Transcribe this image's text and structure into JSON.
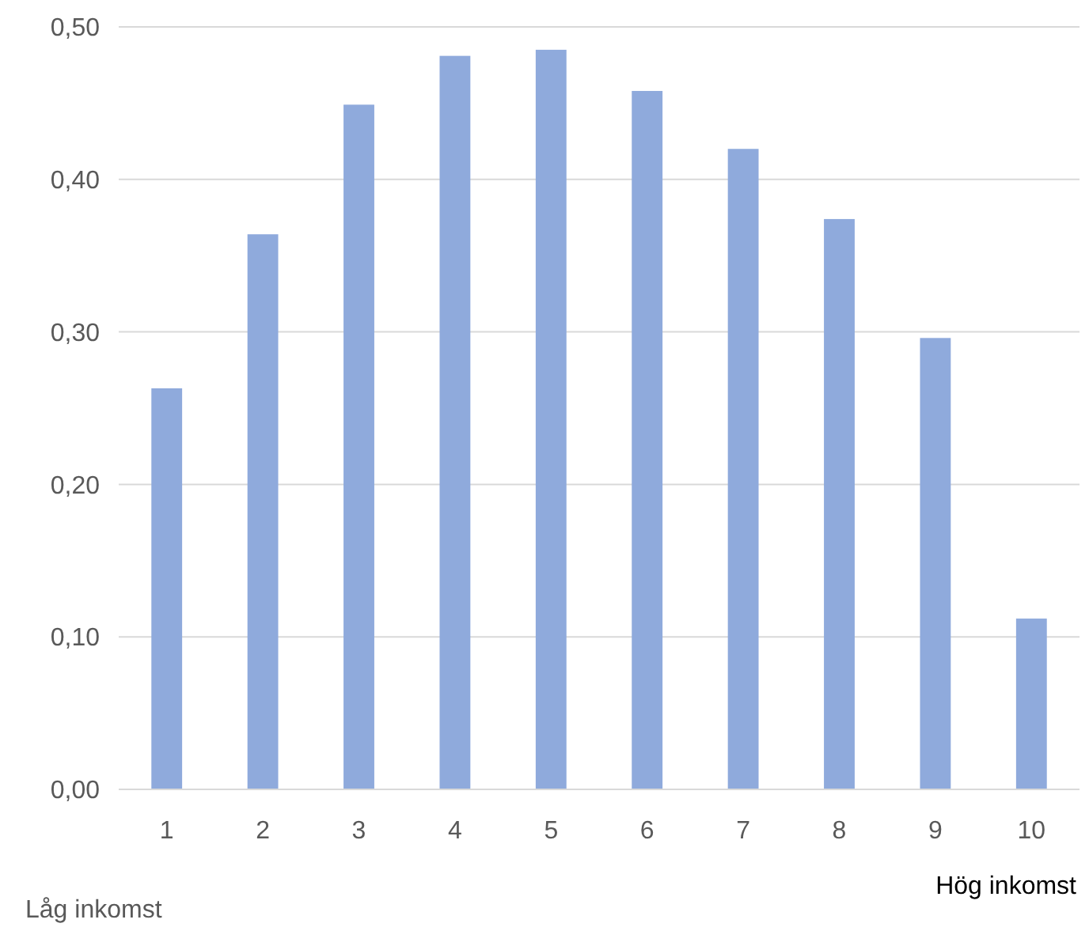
{
  "chart_data": {
    "type": "bar",
    "categories": [
      "1",
      "2",
      "3",
      "4",
      "5",
      "6",
      "7",
      "8",
      "9",
      "10"
    ],
    "values": [
      0.263,
      0.364,
      0.449,
      0.481,
      0.485,
      0.458,
      0.42,
      0.374,
      0.296,
      0.112
    ],
    "color": "#8faadc",
    "ylim": [
      0,
      0.5
    ],
    "yticks": [
      {
        "value": 0,
        "label": "0,00"
      },
      {
        "value": 0.1,
        "label": "0,10"
      },
      {
        "value": 0.2,
        "label": "0,20"
      },
      {
        "value": 0.3,
        "label": "0,30"
      },
      {
        "value": 0.4,
        "label": "0,40"
      },
      {
        "value": 0.5,
        "label": "0,50"
      }
    ],
    "grid": "y",
    "annotations": [
      "Låg inkomst",
      "Hög inkomst"
    ]
  }
}
